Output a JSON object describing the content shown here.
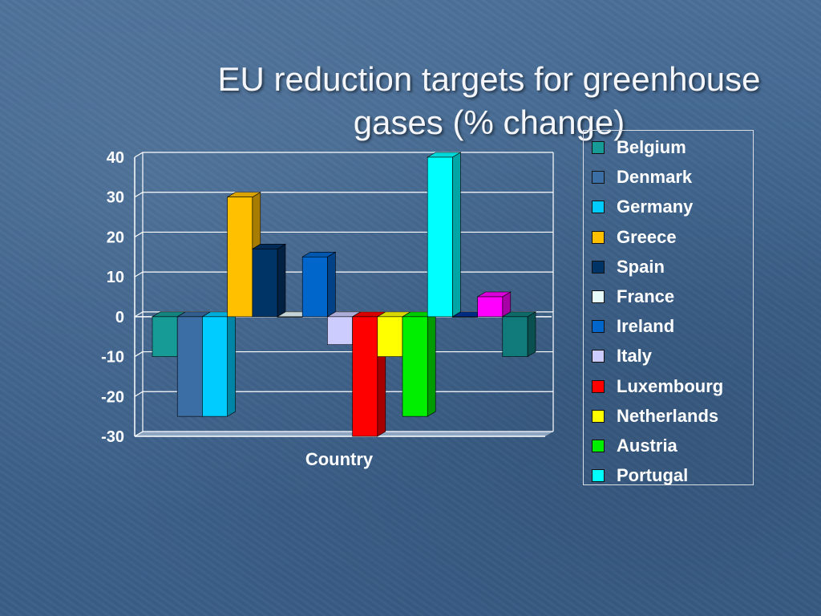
{
  "slide": {
    "title_lines": [
      "EU reduction targets for greenhouse",
      "gases (% change)"
    ]
  },
  "chart_data": {
    "type": "bar",
    "title": "",
    "xlabel": "Country",
    "ylabel": "",
    "ylim": [
      -30,
      40
    ],
    "yticks": [
      40,
      30,
      20,
      10,
      0,
      -10,
      -20,
      -30
    ],
    "grid": true,
    "three_d": true,
    "legend_position": "right",
    "categories": [
      "Country"
    ],
    "series": [
      {
        "name": "Belgium",
        "values": [
          -10
        ],
        "color": "#179b96"
      },
      {
        "name": "Denmark",
        "values": [
          -25
        ],
        "color": "#3a6ea5"
      },
      {
        "name": "Germany",
        "values": [
          -25
        ],
        "color": "#00ccff"
      },
      {
        "name": "Greece",
        "values": [
          30
        ],
        "color": "#ffc000"
      },
      {
        "name": "Spain",
        "values": [
          17
        ],
        "color": "#003366"
      },
      {
        "name": "France",
        "values": [
          0
        ],
        "color": "#e8fbfb"
      },
      {
        "name": "Ireland",
        "values": [
          15
        ],
        "color": "#0066cc"
      },
      {
        "name": "Italy",
        "values": [
          -7
        ],
        "color": "#ccccff"
      },
      {
        "name": "Luxembourg",
        "values": [
          -30
        ],
        "color": "#ff0000"
      },
      {
        "name": "Netherlands",
        "values": [
          -10
        ],
        "color": "#ffff00"
      },
      {
        "name": "Austria",
        "values": [
          -25
        ],
        "color": "#00ee00"
      },
      {
        "name": "Portugal",
        "values": [
          40
        ],
        "color": "#00ffff"
      },
      {
        "name": "",
        "values": [
          0
        ],
        "color": "#003399"
      },
      {
        "name": "",
        "values": [
          5
        ],
        "color": "#ff00ff"
      },
      {
        "name": "",
        "values": [
          -10
        ],
        "color": "#117b7b"
      }
    ],
    "legend_entries": [
      "Belgium",
      "Denmark",
      "Germany",
      "Greece",
      "Spain",
      "France",
      "Ireland",
      "Italy",
      "Luxembourg",
      "Netherlands",
      "Austria",
      "Portugal"
    ]
  }
}
